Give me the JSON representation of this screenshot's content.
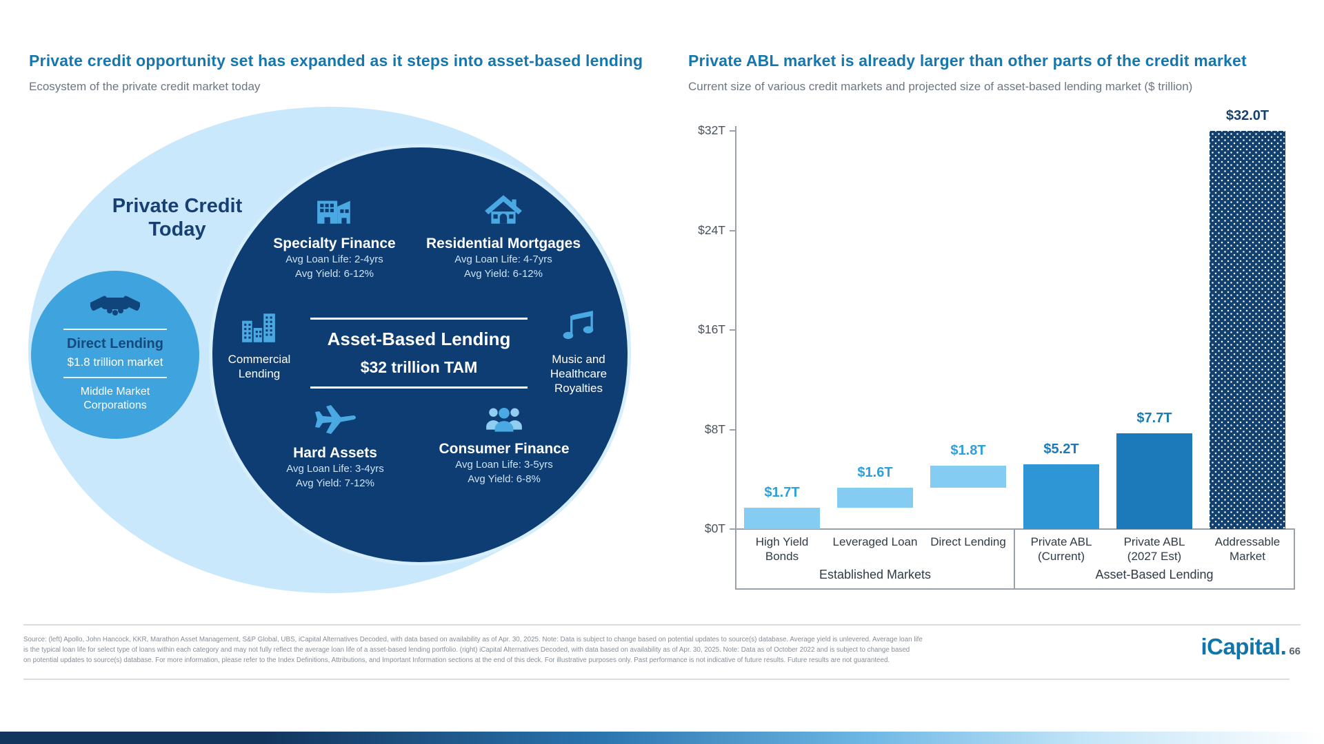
{
  "left_panel": {
    "title": "Private credit opportunity set has expanded as it steps into asset-based lending",
    "subtitle": "Ecosystem of the private credit market today",
    "outer_label": "Private Credit Today",
    "direct_lending": {
      "title": "Direct Lending",
      "market": "$1.8 trillion market",
      "audience": "Middle Market Corporations"
    },
    "center": {
      "title": "Asset-Based Lending",
      "tam": "$32 trillion TAM"
    },
    "segments": [
      {
        "name": "Specialty Finance",
        "loan_life": "Avg Loan Life: 2-4yrs",
        "yield": "Avg Yield: 6-12%"
      },
      {
        "name": "Residential Mortgages",
        "loan_life": "Avg Loan Life: 4-7yrs",
        "yield": "Avg Yield: 6-12%"
      },
      {
        "name": "Commercial Lending"
      },
      {
        "name": "Music and Healthcare Royalties"
      },
      {
        "name": "Hard Assets",
        "loan_life": "Avg Loan Life: 3-4yrs",
        "yield": "Avg Yield: 7-12%"
      },
      {
        "name": "Consumer Finance",
        "loan_life": "Avg Loan Life: 3-5yrs",
        "yield": "Avg Yield: 6-8%"
      }
    ]
  },
  "right_panel": {
    "title": "Private ABL market is already larger than other parts of the credit market",
    "subtitle": "Current size of various credit markets and projected size of asset-based lending market ($ trillion)",
    "chart_data": {
      "type": "bar",
      "title": "Private ABL market is already larger than other parts of the credit market",
      "subtitle": "Current size of various credit markets and projected size of asset-based lending market ($ trillion)",
      "categories": [
        "High Yield Bonds",
        "Leveraged Loan",
        "Direct Lending",
        "Private ABL (Current)",
        "Private ABL (2027 Est)",
        "Addressable Market"
      ],
      "values": [
        1.7,
        1.6,
        1.8,
        5.2,
        7.7,
        32.0
      ],
      "base_values": [
        0,
        1.7,
        3.3,
        0,
        0,
        0
      ],
      "value_labels": [
        "$1.7T",
        "$1.6T",
        "$1.8T",
        "$5.2T",
        "$7.7T",
        "$32.0T"
      ],
      "bar_styles": [
        "light",
        "light",
        "light",
        "medium",
        "dark",
        "pattern"
      ],
      "y_ticks": [
        {
          "label": "$32T",
          "value": 32
        },
        {
          "label": "$24T",
          "value": 24
        },
        {
          "label": "$16T",
          "value": 16
        },
        {
          "label": "$8T",
          "value": 8
        },
        {
          "label": "$0T",
          "value": 0
        }
      ],
      "ylim": [
        0,
        32
      ],
      "xlabel": "",
      "ylabel": "",
      "grid": false,
      "legend": "none",
      "groups": [
        {
          "label": "Established Markets",
          "span": [
            0,
            3
          ]
        },
        {
          "label": "Asset-Based Lending",
          "span": [
            3,
            6
          ]
        }
      ],
      "colors": {
        "bar_light": "#85ccf3",
        "bar_medium": "#2e96d5",
        "bar_dark": "#1c79ba",
        "bar_pattern_navy": "#12406f"
      }
    }
  },
  "footer": {
    "lines": [
      "Source: (left) Apollo, John Hancock, KKR, Marathon Asset Management, S&P Global, UBS, iCapital Alternatives Decoded, with data based on availability as of Apr. 30, 2025. Note: Data is subject to change based on potential updates to source(s) database. Average yield is unlevered. Average loan life",
      "is the typical loan life for select type of loans within each category and may not fully reflect the average loan life of a asset-based lending portfolio. (right) iCapital Alternatives Decoded, with data based on availability as of Apr. 30, 2025. Note: Data as of October 2022 and is subject to change based",
      "on potential updates to source(s) database. For more information, please refer to the Index Definitions, Attributions, and Important Information sections at the end of this deck. For illustrative purposes only. Past performance is not indicative of future results. Future results are not guaranteed."
    ],
    "logo": "iCapital.",
    "page": "66"
  },
  "colors": {
    "title_blue": "#1577ad",
    "navy": "#0e3d74",
    "outer_light_blue": "#c9e8fb",
    "medium_blue": "#3fa3dd",
    "icon_blue": "#4aa9e2"
  }
}
